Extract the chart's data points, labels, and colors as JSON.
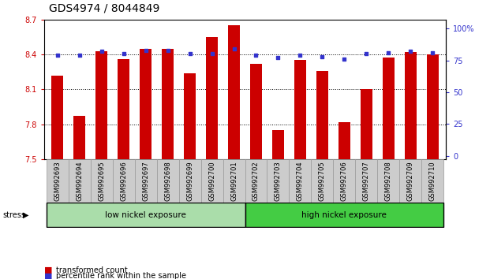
{
  "title": "GDS4974 / 8044849",
  "samples": [
    "GSM992693",
    "GSM992694",
    "GSM992695",
    "GSM992696",
    "GSM992697",
    "GSM992698",
    "GSM992699",
    "GSM992700",
    "GSM992701",
    "GSM992702",
    "GSM992703",
    "GSM992704",
    "GSM992705",
    "GSM992706",
    "GSM992707",
    "GSM992708",
    "GSM992709",
    "GSM992710"
  ],
  "transformed_count": [
    8.22,
    7.87,
    8.43,
    8.36,
    8.45,
    8.45,
    8.24,
    8.55,
    8.65,
    8.32,
    7.75,
    8.35,
    8.26,
    7.82,
    8.1,
    8.37,
    8.42,
    8.4
  ],
  "percentile_rank": [
    79,
    79,
    82,
    80,
    83,
    83,
    80,
    80,
    84,
    79,
    77,
    79,
    78,
    76,
    80,
    81,
    82,
    81
  ],
  "y_min": 7.5,
  "y_max": 8.7,
  "y_ticks_left": [
    7.5,
    7.8,
    8.1,
    8.4,
    8.7
  ],
  "y_ticks_right": [
    0,
    25,
    50,
    75,
    100
  ],
  "bar_color": "#cc0000",
  "dot_color": "#3333cc",
  "group1_label": "low nickel exposure",
  "group2_label": "high nickel exposure",
  "group1_count": 9,
  "stress_label": "stress",
  "legend_bar": "transformed count",
  "legend_dot": "percentile rank within the sample",
  "group1_color": "#aaddaa",
  "group2_color": "#44cc44",
  "title_fontsize": 10,
  "tick_fontsize": 7,
  "bar_width": 0.55
}
